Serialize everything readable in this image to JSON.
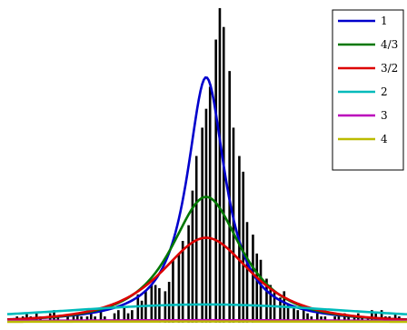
{
  "chart_data": {
    "type": "line",
    "title": "",
    "xlabel": "",
    "ylabel": "",
    "grid": false,
    "legend_position": "top-right",
    "histogram": {
      "type": "bar",
      "color": "#000000",
      "x": [
        -0.97,
        -0.95,
        -0.92,
        -0.9,
        -0.88,
        -0.85,
        -0.83,
        -0.81,
        -0.78,
        -0.76,
        -0.74,
        -0.71,
        -0.69,
        -0.66,
        -0.64,
        -0.62,
        -0.59,
        -0.57,
        -0.55,
        -0.52,
        -0.5,
        -0.48,
        -0.45,
        -0.43,
        -0.4,
        -0.38,
        -0.36,
        -0.33,
        -0.31,
        -0.29,
        -0.26,
        -0.24,
        -0.22,
        -0.19,
        -0.17,
        -0.15,
        -0.12,
        -0.1,
        -0.07,
        -0.05,
        -0.03,
        0.0,
        0.02,
        0.04,
        0.07,
        0.09,
        0.11,
        0.14,
        0.16,
        0.19,
        0.21,
        0.23,
        0.26,
        0.28,
        0.3,
        0.33,
        0.35,
        0.37,
        0.4,
        0.42,
        0.44,
        0.47,
        0.49,
        0.52,
        0.54,
        0.56,
        0.59,
        0.61,
        0.63,
        0.66,
        0.68,
        0.7,
        0.73,
        0.75,
        0.78,
        0.8,
        0.82,
        0.85,
        0.87,
        0.89,
        0.92,
        0.94,
        0.96,
        0.99,
        1.01,
        1.04
      ],
      "values": [
        0.01,
        0.02,
        0.02,
        0.03,
        0.02,
        0.03,
        0.02,
        0.01,
        0.03,
        0.04,
        0.02,
        0.01,
        0.02,
        0.02,
        0.03,
        0.02,
        0.02,
        0.03,
        0.02,
        0.04,
        0.02,
        0.01,
        0.03,
        0.04,
        0.05,
        0.03,
        0.04,
        0.09,
        0.07,
        0.1,
        0.12,
        0.12,
        0.11,
        0.1,
        0.13,
        0.2,
        0.22,
        0.26,
        0.31,
        0.42,
        0.53,
        0.62,
        0.68,
        0.75,
        0.9,
        1.0,
        0.94,
        0.8,
        0.62,
        0.53,
        0.48,
        0.32,
        0.28,
        0.22,
        0.2,
        0.14,
        0.12,
        0.1,
        0.08,
        0.1,
        0.06,
        0.05,
        0.04,
        0.04,
        0.03,
        0.02,
        0.03,
        0.02,
        0.02,
        0.01,
        0.02,
        0.02,
        0.03,
        0.02,
        0.02,
        0.03,
        0.02,
        0.02,
        0.04,
        0.03,
        0.04,
        0.02,
        0.02,
        0.03,
        0.02,
        0.01
      ]
    },
    "series": [
      {
        "name": "1",
        "color": "#0000cc",
        "peak": 0.78,
        "width": 0.12,
        "exponent": 1.0
      },
      {
        "name": "4/3",
        "color": "#007700",
        "peak": 0.4,
        "width": 0.26,
        "exponent": 1.333
      },
      {
        "name": "3/2",
        "color": "#dd0000",
        "peak": 0.27,
        "width": 0.36,
        "exponent": 1.5
      },
      {
        "name": "2",
        "color": "#00bbbb",
        "peak": 0.058,
        "width": 1.5,
        "exponent": 2.0
      },
      {
        "name": "3",
        "color": "#bb00bb",
        "peak": 0.008,
        "width": 3.0,
        "exponent": 3.0
      },
      {
        "name": "4",
        "color": "#bbbb00",
        "peak": 0.004,
        "width": 4.0,
        "exponent": 4.0
      }
    ],
    "xlim": [
      -1.0,
      1.05
    ],
    "ylim": [
      0.0,
      1.02
    ]
  }
}
